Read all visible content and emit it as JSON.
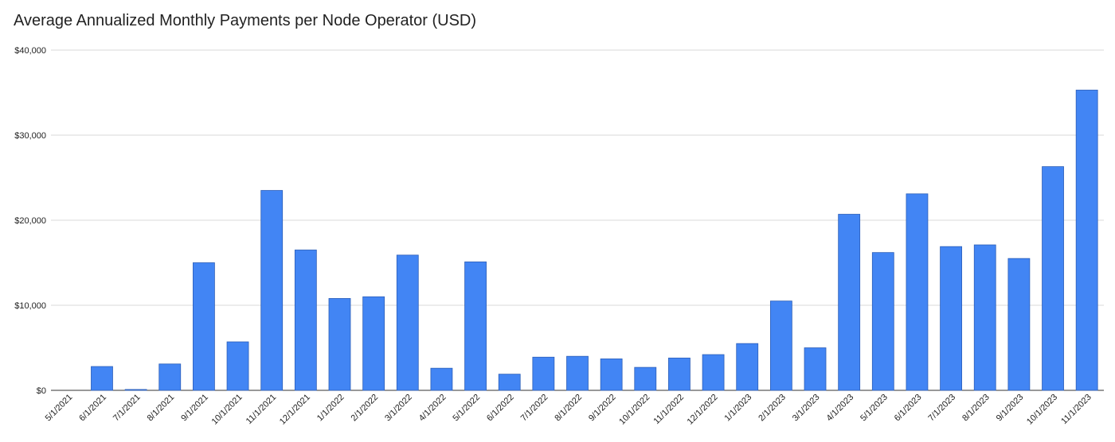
{
  "chart_data": {
    "type": "bar",
    "title": "Average Annualized Monthly Payments per Node Operator (USD)",
    "xlabel": "",
    "ylabel": "",
    "ylim": [
      0,
      40000
    ],
    "yticks": [
      0,
      10000,
      20000,
      30000,
      40000
    ],
    "ytick_labels": [
      "$0",
      "$10,000",
      "$20,000",
      "$30,000",
      "$40,000"
    ],
    "grid": true,
    "legend": "none",
    "bar_color": "#4285f4",
    "categories": [
      "5/1/2021",
      "6/1/2021",
      "7/1/2021",
      "8/1/2021",
      "9/1/2021",
      "10/1/2021",
      "11/1/2021",
      "12/1/2021",
      "1/1/2022",
      "2/1/2022",
      "3/1/2022",
      "4/1/2022",
      "5/1/2022",
      "6/1/2022",
      "7/1/2022",
      "8/1/2022",
      "9/1/2022",
      "10/1/2022",
      "11/1/2022",
      "12/1/2022",
      "1/1/2023",
      "2/1/2023",
      "3/1/2023",
      "4/1/2023",
      "5/1/2023",
      "6/1/2023",
      "7/1/2023",
      "8/1/2023",
      "9/1/2023",
      "10/1/2023",
      "11/1/2023"
    ],
    "values": [
      0,
      2800,
      100,
      3100,
      15000,
      5700,
      23500,
      16500,
      10800,
      11000,
      15900,
      2600,
      15100,
      1900,
      3900,
      4000,
      3700,
      2700,
      3800,
      4200,
      5500,
      10500,
      5000,
      20700,
      16200,
      23100,
      16900,
      17100,
      15500,
      26300,
      35300
    ]
  }
}
